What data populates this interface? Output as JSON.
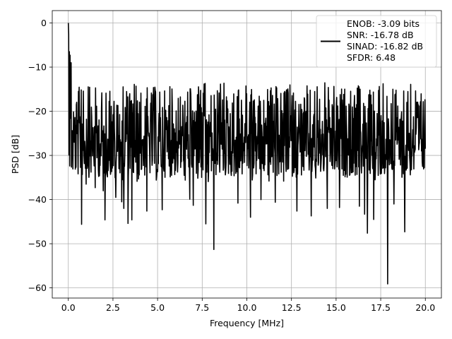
{
  "chart_data": {
    "type": "line",
    "title": "",
    "xlabel": "Frequency [MHz]",
    "ylabel": "PSD [dB]",
    "xlim": [
      -0.9,
      20.9
    ],
    "ylim": [
      -62.3,
      2.8
    ],
    "grid": true,
    "xticks": [
      0.0,
      2.5,
      5.0,
      7.5,
      10.0,
      12.5,
      15.0,
      17.5,
      20.0
    ],
    "xtick_labels": [
      "0.0",
      "2.5",
      "5.0",
      "7.5",
      "10.0",
      "12.5",
      "15.0",
      "17.5",
      "20.0"
    ],
    "yticks": [
      0,
      -10,
      -20,
      -30,
      -40,
      -50,
      -60
    ],
    "ytick_labels": [
      "0",
      "−10",
      "−20",
      "−30",
      "−40",
      "−50",
      "−60"
    ],
    "legend_position": "top-right",
    "legend": [
      "ENOB: -3.09 bits",
      "SNR: -16.78 dB",
      "SINAD: -16.82 dB",
      "SFDR: 6.48"
    ],
    "series": [
      {
        "color": "#000000",
        "description": "dense noise-floor PSD spectrum from 0 to 20 MHz, fluctuating between about -13 and -36 dB",
        "x_range": [
          0.0,
          20.0
        ],
        "points": 1024,
        "upper_envelope_db": -13.5,
        "lower_envelope_db": -36,
        "peaks": [
          {
            "x": 0.0,
            "y": 0.0
          },
          {
            "x": 0.02,
            "y": -2.5
          },
          {
            "x": 0.05,
            "y": -6.5
          },
          {
            "x": 0.1,
            "y": -7.3
          },
          {
            "x": 0.15,
            "y": -9.0
          }
        ],
        "dips": [
          {
            "x": 0.75,
            "y": -45.6
          },
          {
            "x": 1.0,
            "y": -36.5
          },
          {
            "x": 1.5,
            "y": -37.3
          },
          {
            "x": 1.95,
            "y": -38.0
          },
          {
            "x": 2.05,
            "y": -44.6
          },
          {
            "x": 2.65,
            "y": -39.5
          },
          {
            "x": 3.1,
            "y": -42.0
          },
          {
            "x": 3.0,
            "y": -40.5
          },
          {
            "x": 3.35,
            "y": -45.4
          },
          {
            "x": 3.55,
            "y": -44.6
          },
          {
            "x": 4.4,
            "y": -42.6
          },
          {
            "x": 5.25,
            "y": -42.3
          },
          {
            "x": 6.8,
            "y": -39.9
          },
          {
            "x": 7.0,
            "y": -41.3
          },
          {
            "x": 8.15,
            "y": -51.3
          },
          {
            "x": 7.7,
            "y": -45.5
          },
          {
            "x": 9.5,
            "y": -40.8
          },
          {
            "x": 10.2,
            "y": -44.0
          },
          {
            "x": 10.8,
            "y": -40.0
          },
          {
            "x": 11.6,
            "y": -40.6
          },
          {
            "x": 12.8,
            "y": -42.6
          },
          {
            "x": 13.6,
            "y": -43.7
          },
          {
            "x": 14.5,
            "y": -42.0
          },
          {
            "x": 15.2,
            "y": -41.8
          },
          {
            "x": 16.3,
            "y": -41.5
          },
          {
            "x": 16.6,
            "y": -43.3
          },
          {
            "x": 16.75,
            "y": -47.6
          },
          {
            "x": 17.1,
            "y": -44.5
          },
          {
            "x": 17.88,
            "y": -59.1
          },
          {
            "x": 18.25,
            "y": -41.0
          },
          {
            "x": 18.85,
            "y": -47.3
          }
        ]
      }
    ]
  }
}
